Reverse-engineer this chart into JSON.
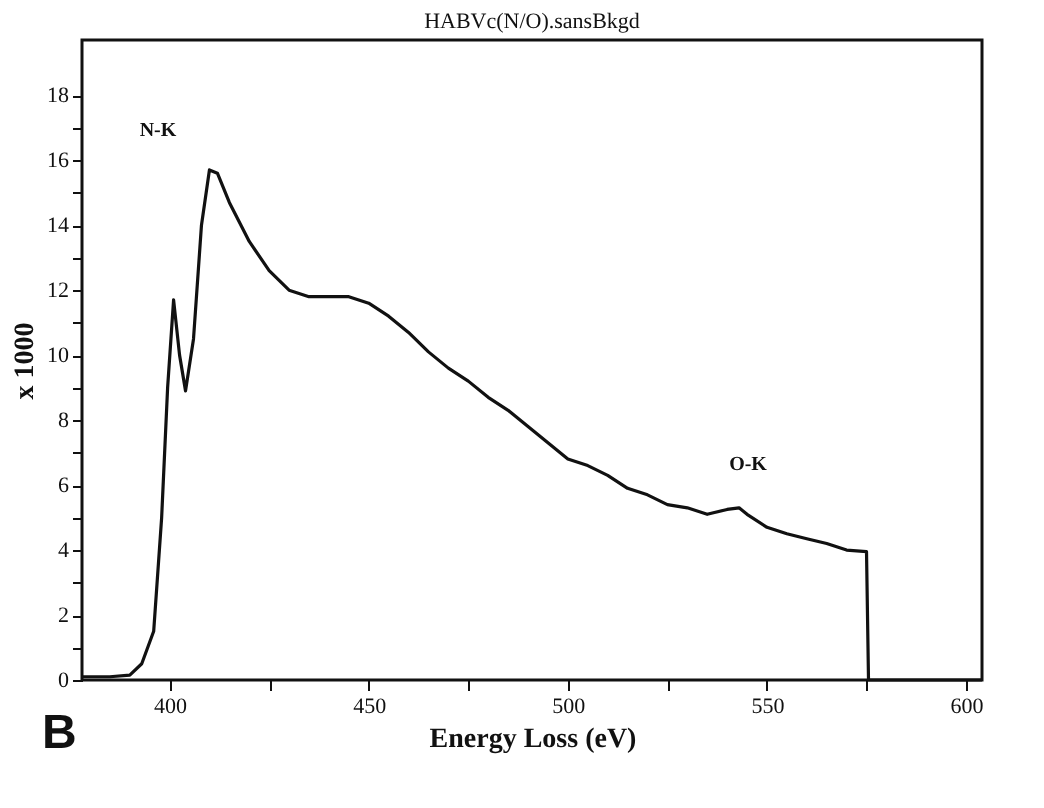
{
  "chart_data": {
    "type": "line",
    "title": "HABVc(N/O).sansBkgd",
    "xlabel": "Energy Loss (eV)",
    "ylabel": "x 1000",
    "annotations": [
      "N-K",
      "O-K",
      "B"
    ],
    "x": [
      378,
      385,
      390,
      393,
      396,
      398,
      399.5,
      401,
      402.5,
      404,
      406,
      408,
      410,
      412,
      415,
      420,
      425,
      430,
      435,
      440,
      445,
      450,
      455,
      460,
      465,
      470,
      475,
      480,
      485,
      490,
      495,
      500,
      505,
      510,
      515,
      520,
      525,
      530,
      535,
      540,
      543,
      545,
      550,
      555,
      560,
      565,
      570,
      575,
      575.5,
      604
    ],
    "series": [
      {
        "color": "#111111",
        "values": [
          0.1,
          0.1,
          0.15,
          0.5,
          1.5,
          5,
          9,
          11.7,
          10,
          8.9,
          10.5,
          14,
          15.7,
          15.6,
          14.7,
          13.5,
          12.6,
          12,
          11.8,
          11.8,
          11.8,
          11.6,
          11.2,
          10.7,
          10.1,
          9.6,
          9.2,
          8.7,
          8.3,
          7.8,
          7.3,
          6.8,
          6.6,
          6.3,
          5.9,
          5.7,
          5.4,
          5.3,
          5.1,
          5.25,
          5.3,
          5.1,
          4.7,
          4.5,
          4.35,
          4.2,
          4.0,
          3.95,
          0,
          0
        ]
      }
    ],
    "xlim": [
      378,
      604
    ],
    "ylim": [
      0,
      19.7
    ],
    "xticks": [
      400,
      {
        "value": 425,
        "label": null
      },
      450,
      {
        "value": 475,
        "label": null
      },
      500,
      {
        "value": 525,
        "label": null
      },
      550,
      {
        "value": 575,
        "label": null
      },
      600
    ],
    "yticks": [
      0,
      {
        "value": 1,
        "label": null
      },
      2,
      {
        "value": 3,
        "label": null
      },
      4,
      {
        "value": 5,
        "label": null
      },
      6,
      {
        "value": 7,
        "label": null
      },
      8,
      {
        "value": 9,
        "label": null
      },
      10,
      {
        "value": 11,
        "label": null
      },
      12,
      {
        "value": 13,
        "label": null
      },
      14,
      {
        "value": 15,
        "label": null
      },
      16,
      {
        "value": 17,
        "label": null
      },
      18
    ],
    "grid": false,
    "marker": "none",
    "line_style": "solid"
  }
}
